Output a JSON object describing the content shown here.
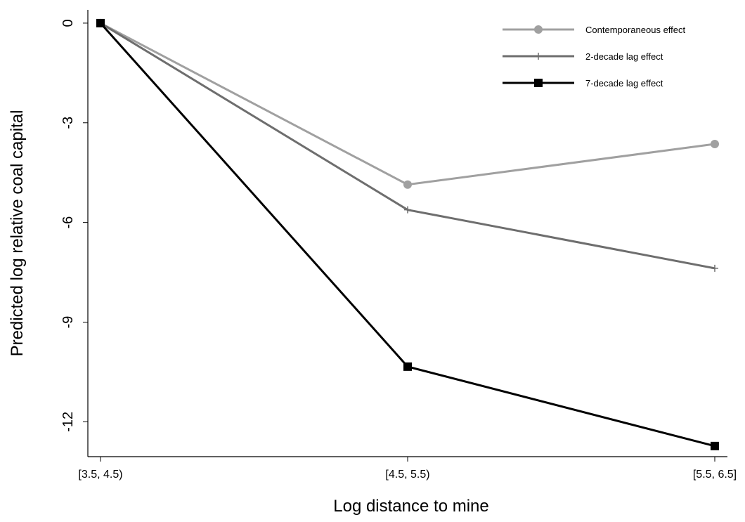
{
  "chart_data": {
    "type": "line",
    "x_label": "Log distance to mine",
    "y_label": "Predicted log relative coal capital",
    "categories": [
      "[3.5, 4.5)",
      "[4.5, 5.5)",
      "[5.5, 6.5]"
    ],
    "series": [
      {
        "name": "Contemporaneous effect",
        "color": "#a0a0a0",
        "marker": "circle",
        "values": [
          0,
          -4.86,
          -3.64
        ]
      },
      {
        "name": "2-decade lag effect",
        "color": "#6e6e6e",
        "marker": "plus",
        "values": [
          0,
          -5.62,
          -7.38
        ]
      },
      {
        "name": "7-decade lag effect",
        "color": "#000000",
        "marker": "square",
        "values": [
          0,
          -10.34,
          -12.73
        ]
      }
    ],
    "ylim": [
      -13.05,
      0.4
    ],
    "yticks": [
      0,
      -3,
      -6,
      -9,
      -12
    ],
    "legend": "top-right"
  }
}
